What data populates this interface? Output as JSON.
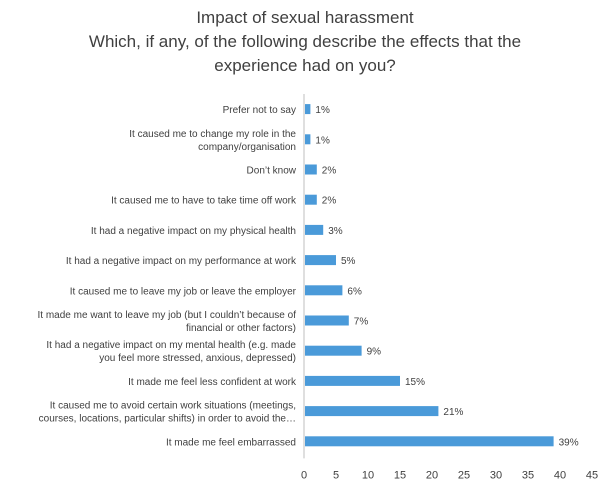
{
  "chart_data": {
    "type": "bar",
    "orientation": "horizontal",
    "title": "Impact of sexual harassment",
    "subtitle": [
      "Which, if any, of the following describe the effects that the",
      "experience had on you?"
    ],
    "categories": [
      [
        "Prefer not to say"
      ],
      [
        "It caused me to change my role in the",
        "company/organisation"
      ],
      [
        "Don’t know"
      ],
      [
        "It caused me to have to take time off work"
      ],
      [
        "It had a negative impact on my physical health"
      ],
      [
        "It had a negative impact on my performance at work"
      ],
      [
        "It caused me to leave my job or leave the employer"
      ],
      [
        "It made me want to leave my job (but I couldn’t because of",
        "financial or other factors)"
      ],
      [
        "It had a negative impact on my mental health (e.g. made",
        "you feel more stressed, anxious, depressed)"
      ],
      [
        "It made me feel less confident at work"
      ],
      [
        "It caused me to avoid certain work situations (meetings,",
        "courses, locations, particular shifts) in order to avoid the…"
      ],
      [
        "It made me feel embarrassed"
      ]
    ],
    "values": [
      1,
      1,
      2,
      2,
      3,
      5,
      6,
      7,
      9,
      15,
      21,
      39
    ],
    "data_labels": [
      "1%",
      "1%",
      "2%",
      "2%",
      "3%",
      "5%",
      "6%",
      "7%",
      "9%",
      "15%",
      "21%",
      "39%"
    ],
    "xlim": [
      0,
      45
    ],
    "xticks": [
      "0",
      "5",
      "10",
      "15",
      "20",
      "25",
      "30",
      "35",
      "40",
      "45"
    ],
    "grid": false,
    "legend": "none",
    "bar_color": "#4a9ad9",
    "axis_color": "#bfbfbf",
    "text_color": "#404040"
  }
}
